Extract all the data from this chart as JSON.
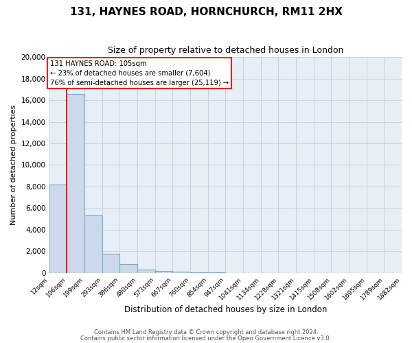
{
  "title": "131, HAYNES ROAD, HORNCHURCH, RM11 2HX",
  "subtitle": "Size of property relative to detached houses in London",
  "xlabel": "Distribution of detached houses by size in London",
  "ylabel": "Number of detached properties",
  "bin_labels": [
    "12sqm",
    "106sqm",
    "199sqm",
    "293sqm",
    "386sqm",
    "480sqm",
    "573sqm",
    "667sqm",
    "760sqm",
    "854sqm",
    "947sqm",
    "1041sqm",
    "1134sqm",
    "1228sqm",
    "1321sqm",
    "1415sqm",
    "1508sqm",
    "1602sqm",
    "1695sqm",
    "1789sqm",
    "1882sqm"
  ],
  "bin_edges": [
    12,
    106,
    199,
    293,
    386,
    480,
    573,
    667,
    760,
    854,
    947,
    1041,
    1134,
    1228,
    1321,
    1415,
    1508,
    1602,
    1695,
    1789,
    1882
  ],
  "bar_heights": [
    8200,
    16600,
    5300,
    1800,
    800,
    300,
    200,
    100,
    80,
    50,
    0,
    0,
    0,
    0,
    0,
    0,
    0,
    0,
    0,
    0
  ],
  "bar_color": "#ccd9ea",
  "bar_edge_color": "#7aa8ce",
  "red_line_x": 105,
  "ann_line1": "131 HAYNES ROAD: 105sqm",
  "ann_line2": "← 23% of detached houses are smaller (7,604)",
  "ann_line3": "76% of semi-detached houses are larger (25,119) →",
  "ylim": [
    0,
    20000
  ],
  "yticks": [
    0,
    2000,
    4000,
    6000,
    8000,
    10000,
    12000,
    14000,
    16000,
    18000,
    20000
  ],
  "grid_color": "#c5d2e2",
  "bg_color": "#e8eef6",
  "fig_bg_color": "#ffffff",
  "footer1": "Contains HM Land Registry data © Crown copyright and database right 2024.",
  "footer2": "Contains public sector information licensed under the Open Government Licence v3.0."
}
